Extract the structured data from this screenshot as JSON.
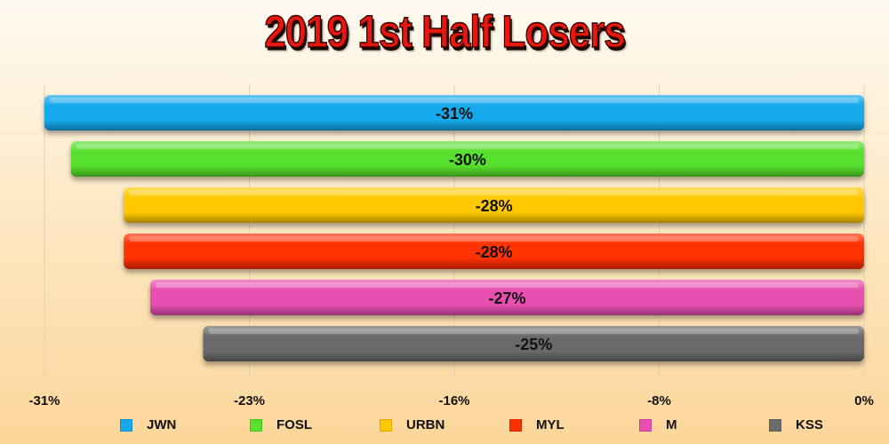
{
  "chart_data": {
    "type": "bar",
    "orientation": "horizontal",
    "title": "2019 1st Half Losers",
    "categories": [
      "JWN",
      "FOSL",
      "URBN",
      "MYL",
      "M",
      "KSS"
    ],
    "values": [
      -31,
      -30,
      -28,
      -28,
      -27,
      -25
    ],
    "data_labels": [
      "-31%",
      "-30%",
      "-28%",
      "-28%",
      "-27%",
      "-25%"
    ],
    "colors": [
      "#16a9ec",
      "#58e02d",
      "#ffc800",
      "#ff3000",
      "#e84fb0",
      "#6b6b6b"
    ],
    "xlim": [
      -31,
      0
    ],
    "x_tick_labels": [
      "-31%",
      "-23%",
      "-16%",
      "-8%",
      "0%"
    ],
    "x_tick_values": [
      -31,
      -23.25,
      -15.5,
      -7.75,
      0
    ],
    "xlabel": "",
    "ylabel": "",
    "legend_position": "bottom",
    "grid": "vertical"
  }
}
